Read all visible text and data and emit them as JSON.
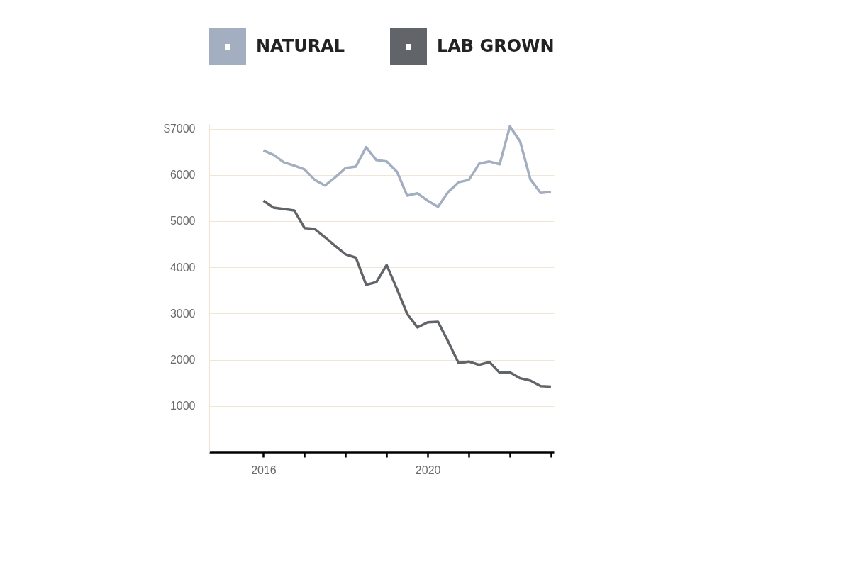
{
  "chart_data": {
    "type": "line",
    "x": [
      2016,
      2016.25,
      2016.5,
      2016.75,
      2017,
      2017.25,
      2017.5,
      2017.75,
      2018,
      2018.25,
      2018.5,
      2018.75,
      2019,
      2019.25,
      2019.5,
      2019.75,
      2020,
      2020.25,
      2020.5,
      2020.75,
      2021,
      2021.25,
      2021.5,
      2021.75,
      2022,
      2022.25,
      2022.5,
      2022.75,
      2023
    ],
    "series": [
      {
        "name": "NATURAL",
        "color": "#a3aec0",
        "values": [
          6530,
          6430,
          6270,
          6200,
          6120,
          5890,
          5770,
          5950,
          6150,
          6180,
          6600,
          6320,
          6290,
          6070,
          5550,
          5600,
          5440,
          5310,
          5630,
          5840,
          5890,
          6240,
          6290,
          6230,
          7050,
          6720,
          5900,
          5610,
          5630
        ]
      },
      {
        "name": "LAB GROWN",
        "color": "#616469",
        "values": [
          5440,
          5290,
          5260,
          5230,
          4850,
          4830,
          4650,
          4460,
          4280,
          4210,
          3620,
          3680,
          4050,
          3530,
          2990,
          2700,
          2810,
          2820,
          2390,
          1930,
          1960,
          1890,
          1950,
          1720,
          1730,
          1600,
          1550,
          1430,
          1420
        ]
      }
    ],
    "xlim": [
      2014.68,
      2023.07
    ],
    "xticks": [
      2016,
      {
        "value": 2017,
        "label": null
      },
      {
        "value": 2018,
        "label": null
      },
      {
        "value": 2019,
        "label": null
      },
      2020,
      {
        "value": 2021,
        "label": null
      },
      {
        "value": 2022,
        "label": null
      },
      {
        "value": 2023,
        "label": null
      }
    ],
    "ylim": [
      0,
      7100
    ],
    "yticks": [
      1000,
      2000,
      3000,
      4000,
      5000,
      6000,
      {
        "value": 7000,
        "label": "$7000"
      }
    ],
    "grid": "y",
    "legend": "top",
    "line_style": "solid",
    "marker": "none"
  }
}
